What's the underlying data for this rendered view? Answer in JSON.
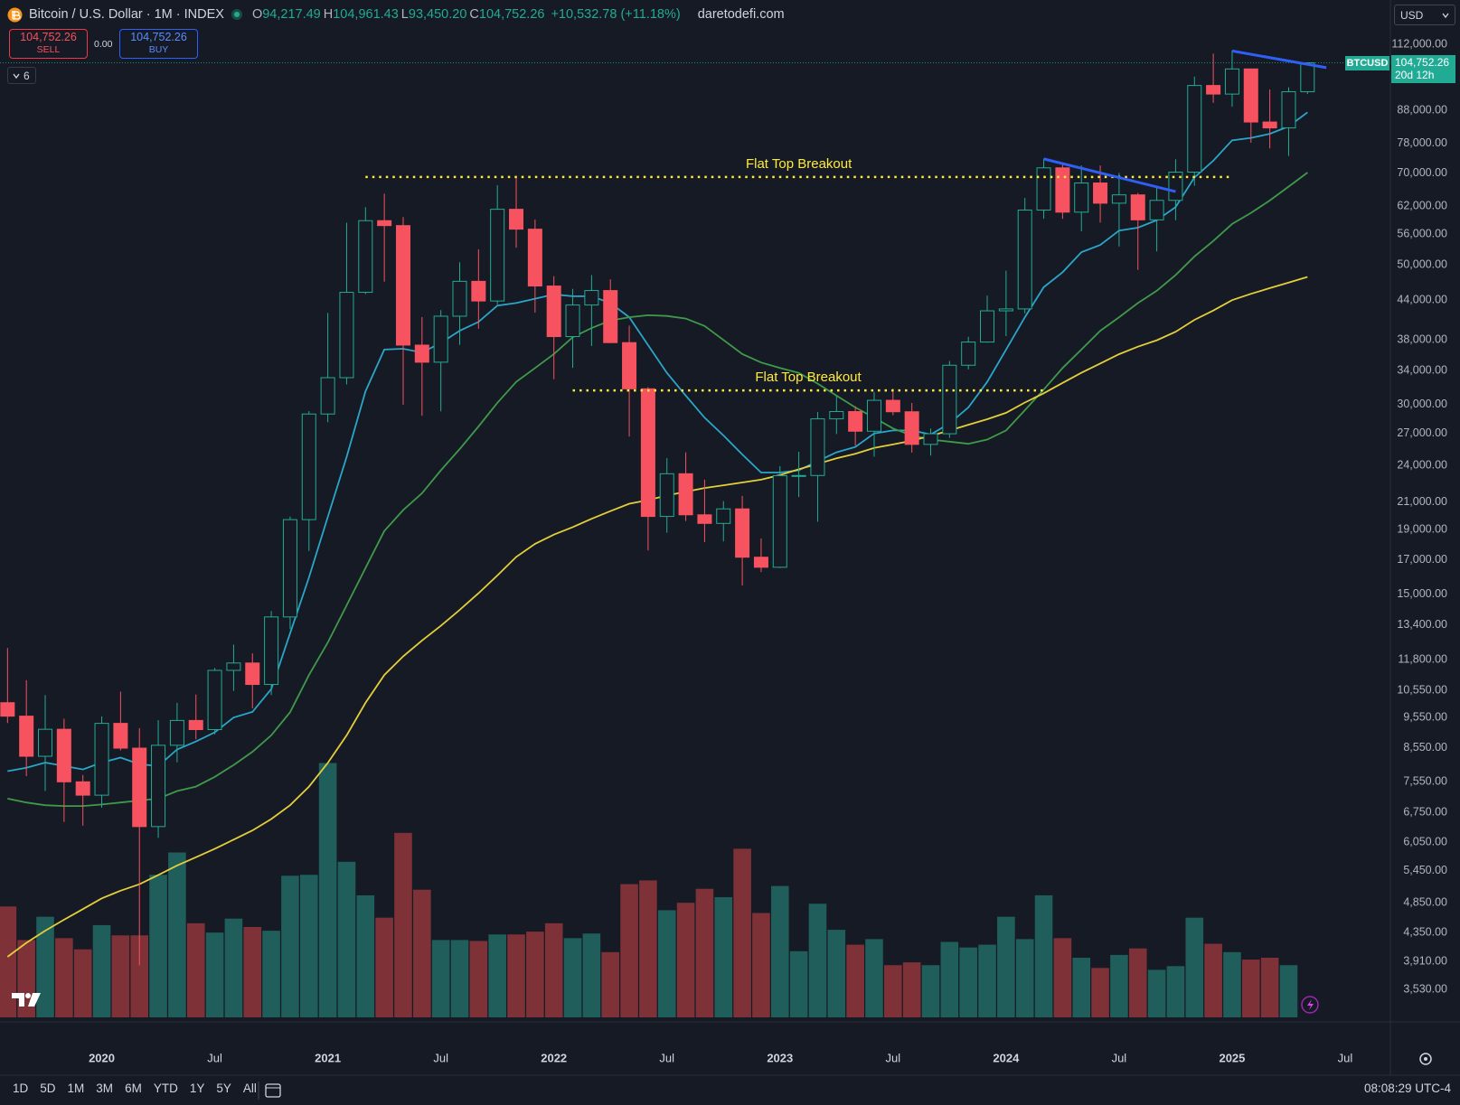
{
  "header": {
    "symbol": "Bitcoin / U.S. Dollar · 1M · INDEX",
    "ohlc": [
      {
        "key": "O",
        "value": "94,217.49"
      },
      {
        "key": "H",
        "value": "104,961.43"
      },
      {
        "key": "L",
        "value": "93,450.20"
      },
      {
        "key": "C",
        "value": "104,752.26"
      }
    ],
    "change": "+10,532.78 (+11.18%)",
    "watermark": "daretodefi.com"
  },
  "trade": {
    "sell_price": "104,752.26",
    "sell": "SELL",
    "spread": "0.00",
    "buy_price": "104,752.26",
    "buy": "BUY"
  },
  "indicators_count": "6",
  "currency": "USD",
  "price_tag": {
    "symbol": "BTCUSD",
    "price": "104,752.26",
    "countdown": "20d 12h"
  },
  "toolbar": {
    "ranges": [
      "1D",
      "5D",
      "1M",
      "3M",
      "6M",
      "YTD",
      "1Y",
      "5Y",
      "All"
    ],
    "time": "08:08:29 UTC-4"
  },
  "chart_data": {
    "type": "candlestick",
    "x": [
      "2019-08",
      "2019-09",
      "2019-10",
      "2019-11",
      "2019-12",
      "2020-01",
      "2020-02",
      "2020-03",
      "2020-04",
      "2020-05",
      "2020-06",
      "2020-07",
      "2020-08",
      "2020-09",
      "2020-10",
      "2020-11",
      "2020-12",
      "2021-01",
      "2021-02",
      "2021-03",
      "2021-04",
      "2021-05",
      "2021-06",
      "2021-07",
      "2021-08",
      "2021-09",
      "2021-10",
      "2021-11",
      "2021-12",
      "2022-01",
      "2022-02",
      "2022-03",
      "2022-04",
      "2022-05",
      "2022-06",
      "2022-07",
      "2022-08",
      "2022-09",
      "2022-10",
      "2022-11",
      "2022-12",
      "2023-01",
      "2023-02",
      "2023-03",
      "2023-04",
      "2023-05",
      "2023-06",
      "2023-07",
      "2023-08",
      "2023-09",
      "2023-10",
      "2023-11",
      "2023-12",
      "2024-01",
      "2024-02",
      "2024-03",
      "2024-04",
      "2024-05",
      "2024-06",
      "2024-07",
      "2024-08",
      "2024-09",
      "2024-10",
      "2024-11",
      "2024-12",
      "2025-01",
      "2025-02",
      "2025-03",
      "2025-04",
      "2025-05"
    ],
    "open": [
      10085,
      9600,
      8290,
      9150,
      7550,
      7190,
      9350,
      8540,
      6410,
      8630,
      9450,
      9140,
      11350,
      11660,
      10780,
      13800,
      19700,
      28990,
      33110,
      45240,
      58800,
      57750,
      37300,
      35040,
      41460,
      47100,
      43830,
      61300,
      57000,
      46300,
      38480,
      43190,
      45540,
      37640,
      31790,
      19930,
      23300,
      20050,
      19430,
      20490,
      17170,
      16550,
      23140,
      23150,
      28480,
      29250,
      27220,
      30480,
      29230,
      25940,
      26970,
      34650,
      37720,
      42280,
      42580,
      61130,
      71330,
      60660,
      67490,
      62680,
      64620,
      58970,
      63330,
      70220,
      96410,
      93430,
      102430,
      84350,
      82550,
      94217.49
    ],
    "high": [
      12320,
      10950,
      10370,
      9510,
      7740,
      9590,
      10500,
      9190,
      9460,
      10080,
      10390,
      11450,
      12470,
      12080,
      14100,
      19920,
      29300,
      41950,
      58350,
      61780,
      64900,
      59590,
      41330,
      42400,
      50500,
      52920,
      66930,
      69000,
      59040,
      47990,
      45820,
      48190,
      47440,
      40050,
      31980,
      24670,
      25200,
      22800,
      21080,
      21480,
      18390,
      23960,
      25250,
      29200,
      31000,
      29820,
      31430,
      31800,
      30190,
      27490,
      35200,
      38450,
      44700,
      48970,
      63900,
      73780,
      72780,
      71980,
      71950,
      70000,
      65100,
      66500,
      73600,
      99590,
      108350,
      109590,
      102500,
      95000,
      95770,
      104961.43
    ],
    "low": [
      9360,
      7710,
      7300,
      6520,
      6430,
      6870,
      8470,
      3860,
      6150,
      8110,
      8820,
      8980,
      10530,
      9880,
      10370,
      13200,
      17570,
      28130,
      32300,
      44950,
      47050,
      30000,
      28800,
      29280,
      37330,
      39600,
      43300,
      53250,
      42000,
      32930,
      34320,
      37170,
      37580,
      26700,
      17600,
      18780,
      19600,
      18150,
      18190,
      15480,
      16260,
      16500,
      21400,
      19550,
      26940,
      25810,
      24800,
      28860,
      25170,
      24900,
      26560,
      34130,
      37640,
      38550,
      41880,
      59220,
      59190,
      56550,
      58400,
      53500,
      49100,
      52550,
      58900,
      66800,
      90500,
      89200,
      78200,
      76600,
      74500,
      93450.2
    ],
    "close": [
      9600,
      8290,
      9150,
      7550,
      7190,
      9350,
      8540,
      6410,
      8630,
      9450,
      9140,
      11350,
      11660,
      10780,
      13800,
      19700,
      28990,
      33110,
      45240,
      58800,
      57750,
      37300,
      35040,
      41460,
      47100,
      43830,
      61300,
      57000,
      46300,
      38480,
      43190,
      45540,
      37640,
      31790,
      19930,
      23300,
      20050,
      19430,
      20490,
      17170,
      16550,
      23140,
      23150,
      28480,
      29250,
      27220,
      30480,
      29230,
      25940,
      26970,
      34650,
      37720,
      42280,
      42580,
      61130,
      71330,
      60660,
      67490,
      62680,
      64620,
      58970,
      63330,
      70220,
      96410,
      93430,
      102430,
      84350,
      82550,
      94220,
      104752.26
    ],
    "volume": [
      119,
      83,
      108,
      85,
      73,
      99,
      88,
      88,
      153,
      177,
      101,
      91,
      106,
      97,
      93,
      152,
      153,
      273,
      167,
      131,
      107,
      198,
      137,
      83,
      83,
      82,
      89,
      89,
      92,
      101,
      85,
      90,
      70,
      143,
      147,
      115,
      123,
      138,
      129,
      181,
      112,
      141,
      71,
      122,
      94,
      78,
      84,
      56,
      59,
      56,
      81,
      75,
      78,
      108,
      84,
      131,
      85,
      64,
      53,
      67,
      74,
      51,
      55,
      107,
      79,
      70,
      62,
      64,
      56,
      null
    ],
    "up_color": "#22ab94",
    "down_color": "#f7525f",
    "volume_up_color": "#1f5e5b",
    "volume_down_color": "#7e3238",
    "log_scale": true,
    "ylim": [
      3190,
      131800
    ],
    "yticks": [
      {
        "value": 112000,
        "label": "112,000.00"
      },
      {
        "value": 88000,
        "label": "88,000.00"
      },
      {
        "value": 78000,
        "label": "78,000.00"
      },
      {
        "value": 70000,
        "label": "70,000.00"
      },
      {
        "value": 62000,
        "label": "62,000.00"
      },
      {
        "value": 56000,
        "label": "56,000.00"
      },
      {
        "value": 50000,
        "label": "50,000.00"
      },
      {
        "value": 44000,
        "label": "44,000.00"
      },
      {
        "value": 38000,
        "label": "38,000.00"
      },
      {
        "value": 34000,
        "label": "34,000.00"
      },
      {
        "value": 30000,
        "label": "30,000.00"
      },
      {
        "value": 27000,
        "label": "27,000.00"
      },
      {
        "value": 24000,
        "label": "24,000.00"
      },
      {
        "value": 21000,
        "label": "21,000.00"
      },
      {
        "value": 19000,
        "label": "19,000.00"
      },
      {
        "value": 17000,
        "label": "17,000.00"
      },
      {
        "value": 15000,
        "label": "15,000.00"
      },
      {
        "value": 13400,
        "label": "13,400.00"
      },
      {
        "value": 11800,
        "label": "11,800.00"
      },
      {
        "value": 10550,
        "label": "10,550.00"
      },
      {
        "value": 9550,
        "label": "9,550.00"
      },
      {
        "value": 8550,
        "label": "8,550.00"
      },
      {
        "value": 7550,
        "label": "7,550.00"
      },
      {
        "value": 6750,
        "label": "6,750.00"
      },
      {
        "value": 6050,
        "label": "6,050.00"
      },
      {
        "value": 5450,
        "label": "5,450.00"
      },
      {
        "value": 4850,
        "label": "4,850.00"
      },
      {
        "value": 4350,
        "label": "4,350.00"
      },
      {
        "value": 3910,
        "label": "3,910.00"
      },
      {
        "value": 3530,
        "label": "3,530.00"
      }
    ],
    "xlim": [
      "2019-08",
      "2025-09"
    ],
    "xticks": [
      {
        "value": "2020-01",
        "label": "2020"
      },
      {
        "value": "2020-07",
        "label": "Jul"
      },
      {
        "value": "2021-01",
        "label": "2021"
      },
      {
        "value": "2021-07",
        "label": "Jul"
      },
      {
        "value": "2022-01",
        "label": "2022"
      },
      {
        "value": "2022-07",
        "label": "Jul"
      },
      {
        "value": "2023-01",
        "label": "2023"
      },
      {
        "value": "2023-07",
        "label": "Jul"
      },
      {
        "value": "2024-01",
        "label": "2024"
      },
      {
        "value": "2024-07",
        "label": "Jul"
      },
      {
        "value": "2025-01",
        "label": "2025"
      },
      {
        "value": "2025-07",
        "label": "Jul"
      }
    ],
    "moving_averages": [
      {
        "color": "#2aa6c9",
        "values": [
          7850,
          7950,
          8100,
          8000,
          7900,
          8100,
          8250,
          8050,
          8000,
          8500,
          8750,
          9050,
          9550,
          9750,
          10600,
          13000,
          15950,
          19900,
          24800,
          31500,
          36700,
          36800,
          36300,
          37600,
          39300,
          40600,
          43100,
          43500,
          44200,
          44900,
          44600,
          44600,
          43500,
          41300,
          37300,
          33700,
          31000,
          28600,
          26800,
          25000,
          23400,
          23400,
          23600,
          24400,
          25200,
          25700,
          27000,
          27300,
          27300,
          26900,
          28000,
          29700,
          32600,
          36700,
          41300,
          46100,
          48700,
          52400,
          53800,
          56700,
          57300,
          58900,
          61800,
          68900,
          73200,
          78900,
          79600,
          80800,
          83000,
          87400
        ]
      },
      {
        "color": "#3f9a4a",
        "values": [
          7100,
          7000,
          6930,
          6910,
          6910,
          6950,
          7000,
          7050,
          7100,
          7300,
          7420,
          7690,
          8030,
          8430,
          8950,
          9740,
          11160,
          12570,
          14400,
          16500,
          18900,
          20400,
          21700,
          23600,
          25500,
          27700,
          30200,
          32600,
          34300,
          36100,
          38400,
          39700,
          40800,
          41300,
          41600,
          41500,
          41100,
          40000,
          38000,
          36100,
          35000,
          34300,
          33700,
          32400,
          31000,
          29700,
          28600,
          27500,
          26800,
          26400,
          26200,
          26000,
          26400,
          27300,
          29400,
          31700,
          34300,
          36700,
          39300,
          41300,
          43500,
          45500,
          48200,
          51600,
          54600,
          58100,
          60500,
          63300,
          66600,
          70100
        ]
      },
      {
        "color": "#e4cf3a",
        "values": [
          3980,
          4190,
          4380,
          4560,
          4740,
          4930,
          5070,
          5190,
          5370,
          5560,
          5730,
          5910,
          6110,
          6320,
          6590,
          6930,
          7420,
          8090,
          8950,
          10080,
          11160,
          11950,
          12660,
          13360,
          14160,
          15050,
          16060,
          17190,
          18030,
          18650,
          19170,
          19760,
          20320,
          20880,
          21160,
          21520,
          21820,
          22120,
          22340,
          22570,
          22800,
          23190,
          23680,
          24160,
          24650,
          25070,
          25600,
          25940,
          26300,
          26760,
          27290,
          27870,
          28440,
          29120,
          30230,
          31270,
          32480,
          33710,
          34870,
          36080,
          37090,
          37970,
          39160,
          40910,
          42330,
          43970,
          45000,
          45940,
          46870,
          47870
        ]
      }
    ],
    "annotations": [
      {
        "text": "Flat Top Breakout",
        "value": 69000,
        "start": "2021-03",
        "end": "2025-01",
        "color": "#ffeb3b"
      },
      {
        "text": "Flat Top Breakout",
        "value": 31600,
        "start": "2022-02",
        "end": "2024-03",
        "color": "#ffeb3b"
      }
    ],
    "trendlines": [
      {
        "color": "#2f5ff5",
        "start": "2024-03",
        "end": "2024-10",
        "values": [
          73700,
          65400
        ]
      },
      {
        "color": "#2f5ff5",
        "start": "2025-01",
        "end": "2025-06",
        "values": [
          109400,
          102900
        ]
      }
    ]
  }
}
